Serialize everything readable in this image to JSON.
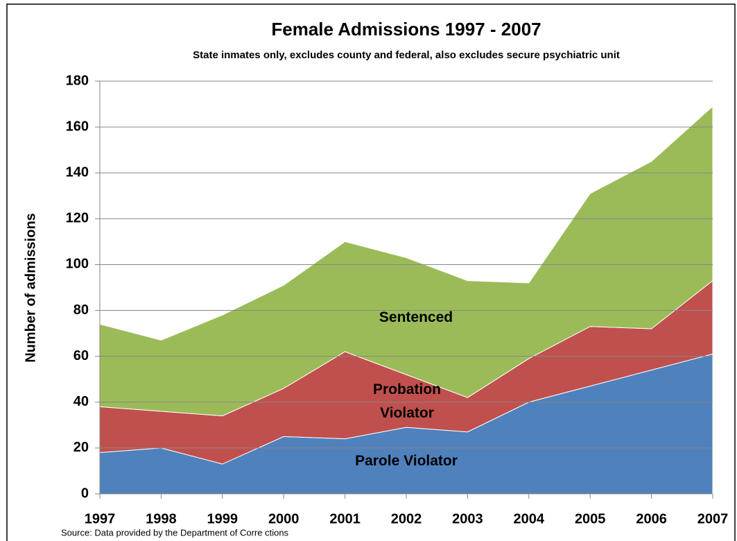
{
  "chart_data": {
    "type": "stacked_area",
    "title": "Female Admissions 1997 - 2007",
    "subtitle": "State inmates only, excludes county and federal, also excludes secure psychiatric unit",
    "y_label": "Number of admissions",
    "source": "Source:  Data provided by the Department of Corre ctions",
    "x": [
      1997,
      1998,
      1999,
      2000,
      2001,
      2002,
      2003,
      2004,
      2005,
      2006,
      2007
    ],
    "xlim": [
      1997,
      2007
    ],
    "series": [
      {
        "name": "Parole Violator",
        "color": "#4f81bd",
        "values": [
          18,
          20,
          13,
          25,
          24,
          29,
          27,
          40,
          47,
          54,
          61
        ]
      },
      {
        "name": "Probation Violator",
        "color": "#c0504d",
        "values": [
          20,
          16,
          21,
          21,
          38,
          23,
          15,
          19,
          26,
          18,
          32
        ]
      },
      {
        "name": "Sentenced",
        "color": "#9bbb59",
        "values": [
          36,
          31,
          44,
          45,
          48,
          51,
          51,
          33,
          58,
          73,
          76
        ]
      }
    ],
    "ylim": [
      0,
      180
    ],
    "yticks": [
      0,
      20,
      40,
      60,
      80,
      100,
      120,
      140,
      160,
      180
    ],
    "grid": true
  }
}
